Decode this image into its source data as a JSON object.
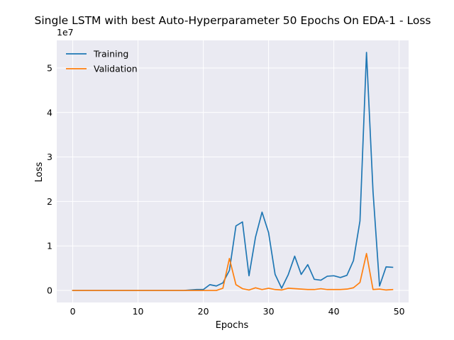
{
  "chart_data": {
    "type": "line",
    "title": "Single LSTM with best Auto-Hyperparameter 50 Epochs On EDA-1 - Loss",
    "xlabel": "Epochs",
    "ylabel": "Loss",
    "y_offset_label": "1e7",
    "xlim": [
      -2.45,
      51.45
    ],
    "ylim": [
      -0.27,
      5.62
    ],
    "x_ticks": [
      0,
      10,
      20,
      30,
      40,
      50
    ],
    "y_ticks": [
      0,
      1,
      2,
      3,
      4,
      5
    ],
    "grid": true,
    "legend_position": "upper-left",
    "x": [
      0,
      1,
      2,
      3,
      4,
      5,
      6,
      7,
      8,
      9,
      10,
      11,
      12,
      13,
      14,
      15,
      16,
      17,
      18,
      19,
      20,
      21,
      22,
      23,
      24,
      25,
      26,
      27,
      28,
      29,
      30,
      31,
      32,
      33,
      34,
      35,
      36,
      37,
      38,
      39,
      40,
      41,
      42,
      43,
      44,
      45,
      46,
      47,
      48,
      49
    ],
    "series": [
      {
        "name": "Training",
        "color": "#1f77b4",
        "values": [
          0,
          0,
          0,
          0,
          0,
          0,
          0,
          0,
          0,
          0,
          0,
          0,
          0,
          0,
          0,
          0,
          0,
          0,
          0.01,
          0.02,
          0.02,
          0.13,
          0.1,
          0.17,
          0.45,
          1.45,
          1.54,
          0.33,
          1.2,
          1.76,
          1.3,
          0.36,
          0.05,
          0.35,
          0.77,
          0.36,
          0.58,
          0.25,
          0.23,
          0.32,
          0.33,
          0.29,
          0.34,
          0.67,
          1.56,
          5.35,
          2.22,
          0.1,
          0.53,
          0.52
        ]
      },
      {
        "name": "Validation",
        "color": "#ff7f0e",
        "values": [
          0,
          0,
          0,
          0,
          0,
          0,
          0,
          0,
          0,
          0,
          0,
          0,
          0,
          0,
          0,
          0,
          0,
          0,
          0,
          0,
          0,
          0,
          0,
          0.05,
          0.72,
          0.13,
          0.04,
          0.01,
          0.06,
          0.02,
          0.05,
          0.02,
          0.01,
          0.05,
          0.04,
          0.03,
          0.02,
          0.02,
          0.04,
          0.02,
          0.02,
          0.02,
          0.03,
          0.06,
          0.18,
          0.83,
          0.02,
          0.03,
          0.01,
          0.02
        ]
      }
    ]
  }
}
